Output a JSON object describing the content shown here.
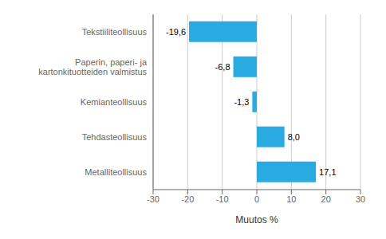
{
  "chart_data": {
    "type": "bar",
    "orientation": "horizontal",
    "categories": [
      "Tekstiiliteollisuus",
      "Paperin, paperi- ja kartonkituotteiden valmistus",
      "Kemianteollisuus",
      "Tehdasteollisuus",
      "Metalliteollisuus"
    ],
    "values": [
      -19.6,
      -6.8,
      -1.3,
      8.0,
      17.1
    ],
    "value_labels": [
      "-19,6",
      "-6,8",
      "-1,3",
      "8,0",
      "17,1"
    ],
    "data_labels": true,
    "color": "#29abe2",
    "xlim": [
      -30,
      30
    ],
    "xticks": [
      -30,
      -20,
      -10,
      0,
      10,
      20,
      30
    ],
    "xlabel": "Muutos %",
    "grid": true
  }
}
